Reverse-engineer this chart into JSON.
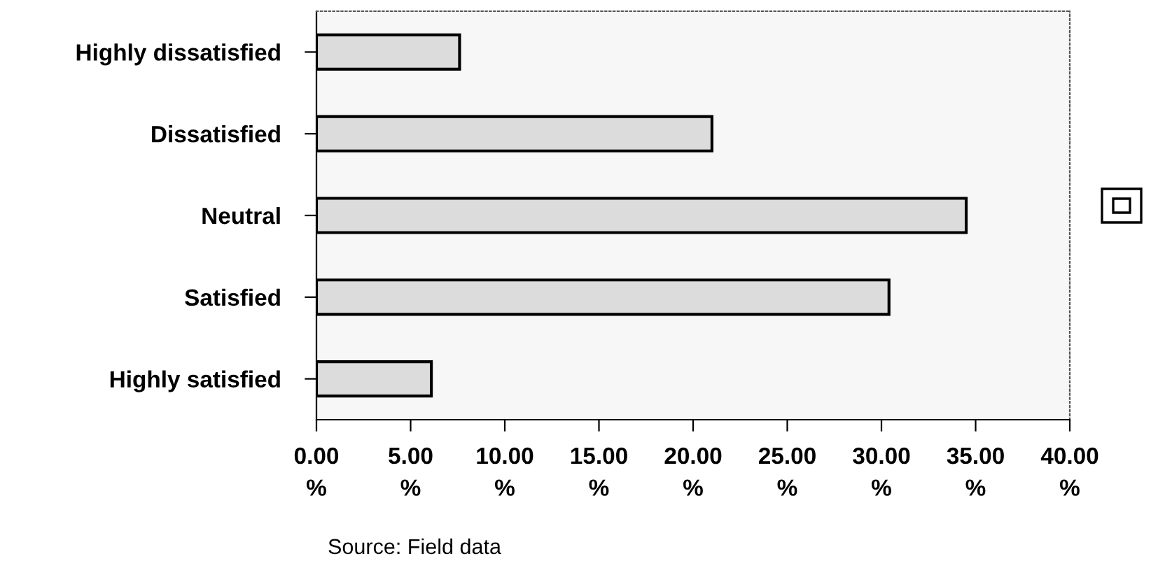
{
  "chart_data": {
    "type": "bar",
    "orientation": "horizontal",
    "categories": [
      "Highly dissatisfied",
      "Dissatisfied",
      "Neutral",
      "Satisfied",
      "Highly satisfied"
    ],
    "values": [
      7.6,
      21.0,
      34.5,
      30.4,
      6.1
    ],
    "color": "#dcdcdc",
    "xlim": [
      0,
      40
    ],
    "xticks": [
      {
        "value": 0,
        "label": "0.00\n%"
      },
      {
        "value": 5,
        "label": "5.00\n%"
      },
      {
        "value": 10,
        "label": "10.00\n%"
      },
      {
        "value": 15,
        "label": "15.00\n%"
      },
      {
        "value": 20,
        "label": "20.00\n%"
      },
      {
        "value": 25,
        "label": "25.00\n%"
      },
      {
        "value": 30,
        "label": "30.00\n%"
      },
      {
        "value": 35,
        "label": "35.00\n%"
      },
      {
        "value": 40,
        "label": "40.00\n%"
      }
    ],
    "annotations": [
      "Source: Field data"
    ]
  }
}
